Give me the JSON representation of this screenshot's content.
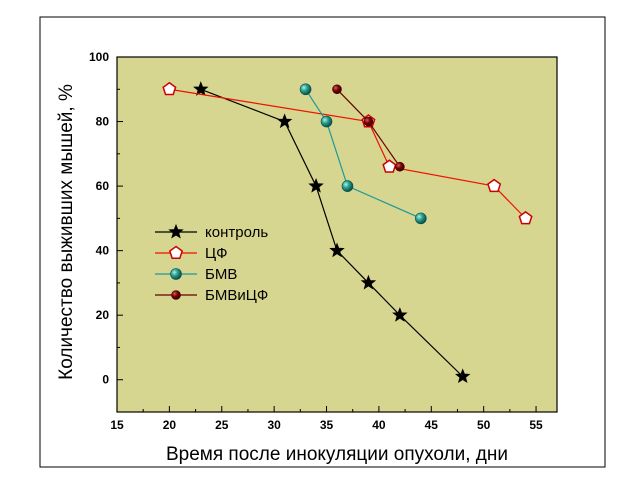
{
  "colors": {
    "plot_background": "#d6d690",
    "frame": "#000000",
    "outer_background": "#ffffff"
  },
  "chart_data": {
    "type": "line",
    "xlabel": "Время после инокуляции опухоли, дни",
    "ylabel": "Количество выживших мышей, %",
    "xlim": [
      15,
      57
    ],
    "ylim": [
      -10,
      100
    ],
    "xticks": [
      15,
      20,
      25,
      30,
      35,
      40,
      45,
      50,
      55
    ],
    "yticks": [
      0,
      20,
      40,
      60,
      80,
      100
    ],
    "grid": false,
    "legend_position": "left-center",
    "series": [
      {
        "name": "контроль",
        "color": "#000000",
        "marker": "star",
        "marker_fill": "#000000",
        "x": [
          23,
          31,
          34,
          36,
          39,
          42,
          48
        ],
        "y": [
          90,
          80,
          60,
          40,
          30,
          20,
          1
        ]
      },
      {
        "name": "ЦФ",
        "color": "#ee1100",
        "marker": "pentagon",
        "marker_fill": "#ffffff",
        "marker_edge": "#cc0000",
        "x": [
          20,
          39,
          41,
          51,
          54
        ],
        "y": [
          90,
          80,
          66,
          60,
          50
        ]
      },
      {
        "name": "БМВ",
        "color": "#1f9999",
        "marker": "sphere",
        "marker_fill": "#1a8a7a",
        "x": [
          33,
          35,
          37,
          44
        ],
        "y": [
          90,
          80,
          60,
          50
        ]
      },
      {
        "name": "БМВиЦФ",
        "color": "#660000",
        "marker": "circle",
        "marker_fill": "#770000",
        "x": [
          36,
          39,
          42
        ],
        "y": [
          90,
          80,
          66
        ]
      }
    ]
  }
}
